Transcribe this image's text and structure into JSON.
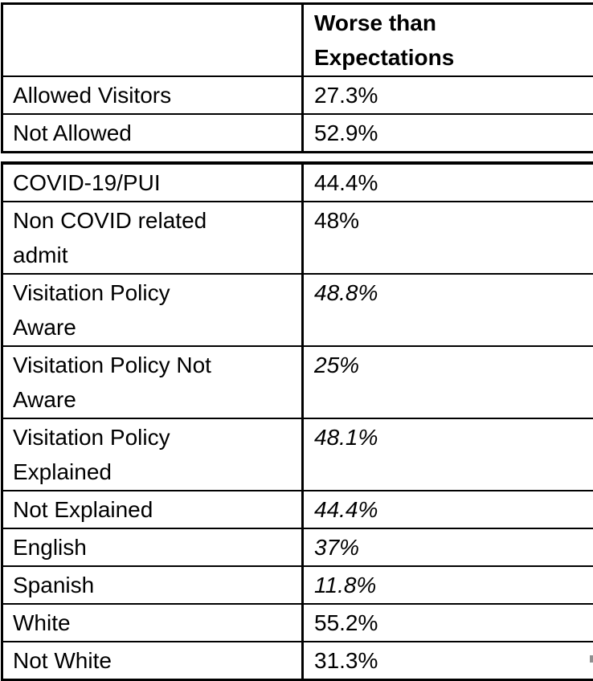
{
  "table": {
    "header": {
      "label_column_title": "",
      "value_column_title": "Worse than\nExpectations"
    },
    "group1_rows": [
      {
        "label": "Allowed Visitors",
        "value": "27.3%",
        "italic": false
      },
      {
        "label": "Not Allowed",
        "value": "52.9%",
        "italic": false
      }
    ],
    "group2_rows": [
      {
        "label": "COVID-19/PUI",
        "value": "44.4%",
        "italic": false
      },
      {
        "label": "Non COVID related\nadmit",
        "value": "48%",
        "italic": false
      },
      {
        "label": "Visitation Policy\nAware",
        "value": "48.8%",
        "italic": true
      },
      {
        "label": "Visitation Policy Not\nAware",
        "value": "25%",
        "italic": true
      },
      {
        "label": "Visitation Policy\nExplained",
        "value": "48.1%",
        "italic": true
      },
      {
        "label": "Not Explained",
        "value": "44.4%",
        "italic": true
      },
      {
        "label": "English",
        "value": "37%",
        "italic": true
      },
      {
        "label": "Spanish",
        "value": "11.8%",
        "italic": true
      },
      {
        "label": "White",
        "value": "55.2%",
        "italic": false
      },
      {
        "label": "Not White",
        "value": "31.3%",
        "italic": false
      }
    ]
  },
  "colors": {
    "border": "#000000",
    "text": "#000000",
    "background": "#ffffff"
  }
}
